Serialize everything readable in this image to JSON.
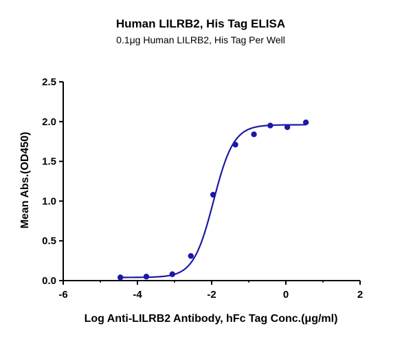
{
  "chart_data": {
    "type": "scatter",
    "title": "Human LILRB2, His Tag ELISA",
    "subtitle": "0.1μg Human LILRB2, His Tag Per Well",
    "xlabel": "Log Anti-LILRB2 Antibody, hFc Tag Conc.(μg/ml)",
    "ylabel": "Mean Abs.(OD450)",
    "xlim": [
      -6,
      2
    ],
    "ylim": [
      0,
      2.5
    ],
    "x_ticks": [
      "-6",
      "-4",
      "-2",
      "0",
      "2"
    ],
    "y_ticks": [
      "0.0",
      "0.5",
      "1.0",
      "1.5",
      "2.0",
      "2.5"
    ],
    "grid": false,
    "series": [
      {
        "color": "#1a1aa6",
        "points": [
          {
            "x": -4.46,
            "y": 0.04
          },
          {
            "x": -3.76,
            "y": 0.05
          },
          {
            "x": -3.06,
            "y": 0.08
          },
          {
            "x": -2.56,
            "y": 0.31
          },
          {
            "x": -1.96,
            "y": 1.08
          },
          {
            "x": -1.36,
            "y": 1.71
          },
          {
            "x": -0.86,
            "y": 1.84
          },
          {
            "x": -0.42,
            "y": 1.95
          },
          {
            "x": 0.04,
            "y": 1.93
          },
          {
            "x": 0.54,
            "y": 1.99
          }
        ],
        "fit": {
          "model": "4PL",
          "bottom": 0.04,
          "top": 1.96,
          "logEC50": -1.95,
          "hill": 1.6,
          "x_range": [
            -4.46,
            0.54
          ]
        }
      }
    ]
  }
}
